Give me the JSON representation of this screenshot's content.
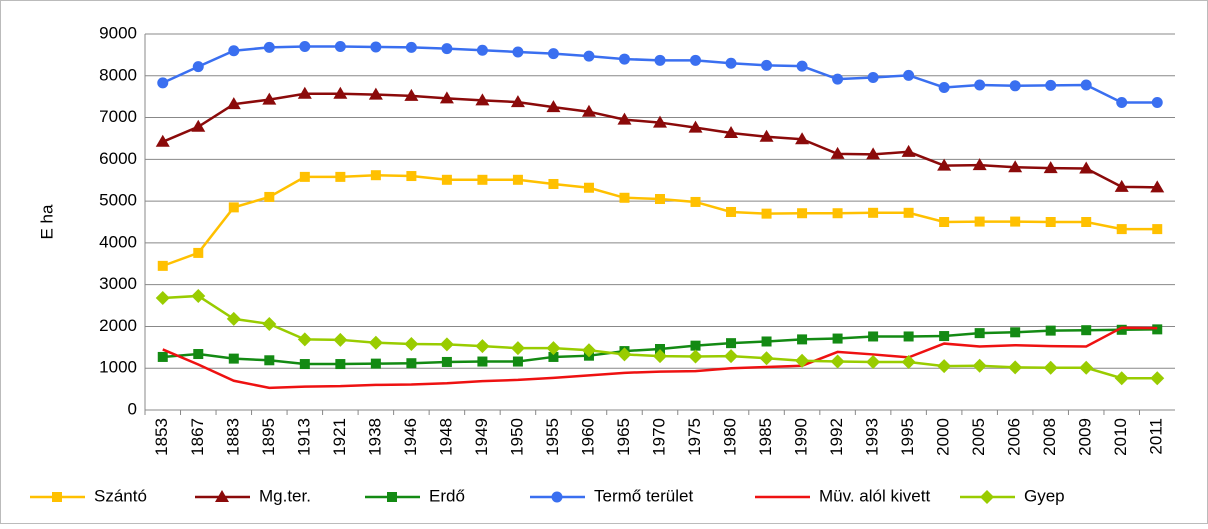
{
  "chart_data": {
    "type": "line",
    "y_label": "E ha",
    "categories": [
      "1853",
      "1867",
      "1883",
      "1895",
      "1913",
      "1921",
      "1938",
      "1946",
      "1948",
      "1949",
      "1950",
      "1955",
      "1960",
      "1965",
      "1970",
      "1975",
      "1980",
      "1985",
      "1990",
      "1992",
      "1993",
      "1995",
      "2000",
      "2005",
      "2006",
      "2008",
      "2009",
      "2010",
      "2011"
    ],
    "series": [
      {
        "name": "Szántó",
        "color": "#ffc000",
        "marker": "square",
        "values": [
          3450,
          3760,
          4850,
          5100,
          5580,
          5580,
          5620,
          5600,
          5510,
          5510,
          5510,
          5410,
          5320,
          5080,
          5050,
          4980,
          4740,
          4700,
          4710,
          4710,
          4720,
          4720,
          4500,
          4510,
          4510,
          4500,
          4500,
          4330,
          4330
        ]
      },
      {
        "name": "Mg.ter.",
        "color": "#8b0a0a",
        "marker": "triangle",
        "values": [
          6420,
          6780,
          7320,
          7430,
          7570,
          7570,
          7550,
          7520,
          7460,
          7410,
          7370,
          7250,
          7140,
          6950,
          6880,
          6760,
          6630,
          6540,
          6480,
          6130,
          6120,
          6180,
          5850,
          5860,
          5810,
          5790,
          5780,
          5340,
          5330
        ]
      },
      {
        "name": "Erdő",
        "color": "#138a13",
        "marker": "square",
        "values": [
          1270,
          1340,
          1230,
          1190,
          1100,
          1100,
          1110,
          1120,
          1150,
          1160,
          1160,
          1270,
          1300,
          1410,
          1460,
          1540,
          1600,
          1640,
          1690,
          1710,
          1760,
          1760,
          1770,
          1840,
          1860,
          1900,
          1910,
          1920,
          1930
        ]
      },
      {
        "name": "Termő terület",
        "color": "#3a6ff0",
        "marker": "circle",
        "values": [
          7830,
          8220,
          8600,
          8680,
          8700,
          8700,
          8690,
          8680,
          8650,
          8610,
          8570,
          8530,
          8470,
          8400,
          8370,
          8370,
          8300,
          8250,
          8230,
          7920,
          7960,
          8010,
          7720,
          7780,
          7760,
          7770,
          7780,
          7360,
          7360
        ]
      },
      {
        "name": "Müv. alól kivett",
        "color": "#ee1111",
        "marker": "none",
        "values": [
          1450,
          1090,
          700,
          530,
          560,
          570,
          600,
          610,
          640,
          690,
          720,
          770,
          830,
          890,
          920,
          930,
          1000,
          1030,
          1060,
          1390,
          1330,
          1260,
          1590,
          1520,
          1550,
          1530,
          1520,
          1970,
          1960
        ]
      },
      {
        "name": "Gyep",
        "color": "#99cc00",
        "marker": "diamond",
        "values": [
          2680,
          2730,
          2180,
          2060,
          1690,
          1680,
          1610,
          1580,
          1570,
          1530,
          1480,
          1480,
          1430,
          1330,
          1290,
          1280,
          1290,
          1240,
          1180,
          1160,
          1150,
          1150,
          1050,
          1060,
          1020,
          1010,
          1010,
          760,
          760
        ]
      }
    ],
    "ylim": [
      0,
      9000
    ],
    "yticks": [
      0,
      1000,
      2000,
      3000,
      4000,
      5000,
      6000,
      7000,
      8000,
      9000
    ],
    "grid": true
  }
}
